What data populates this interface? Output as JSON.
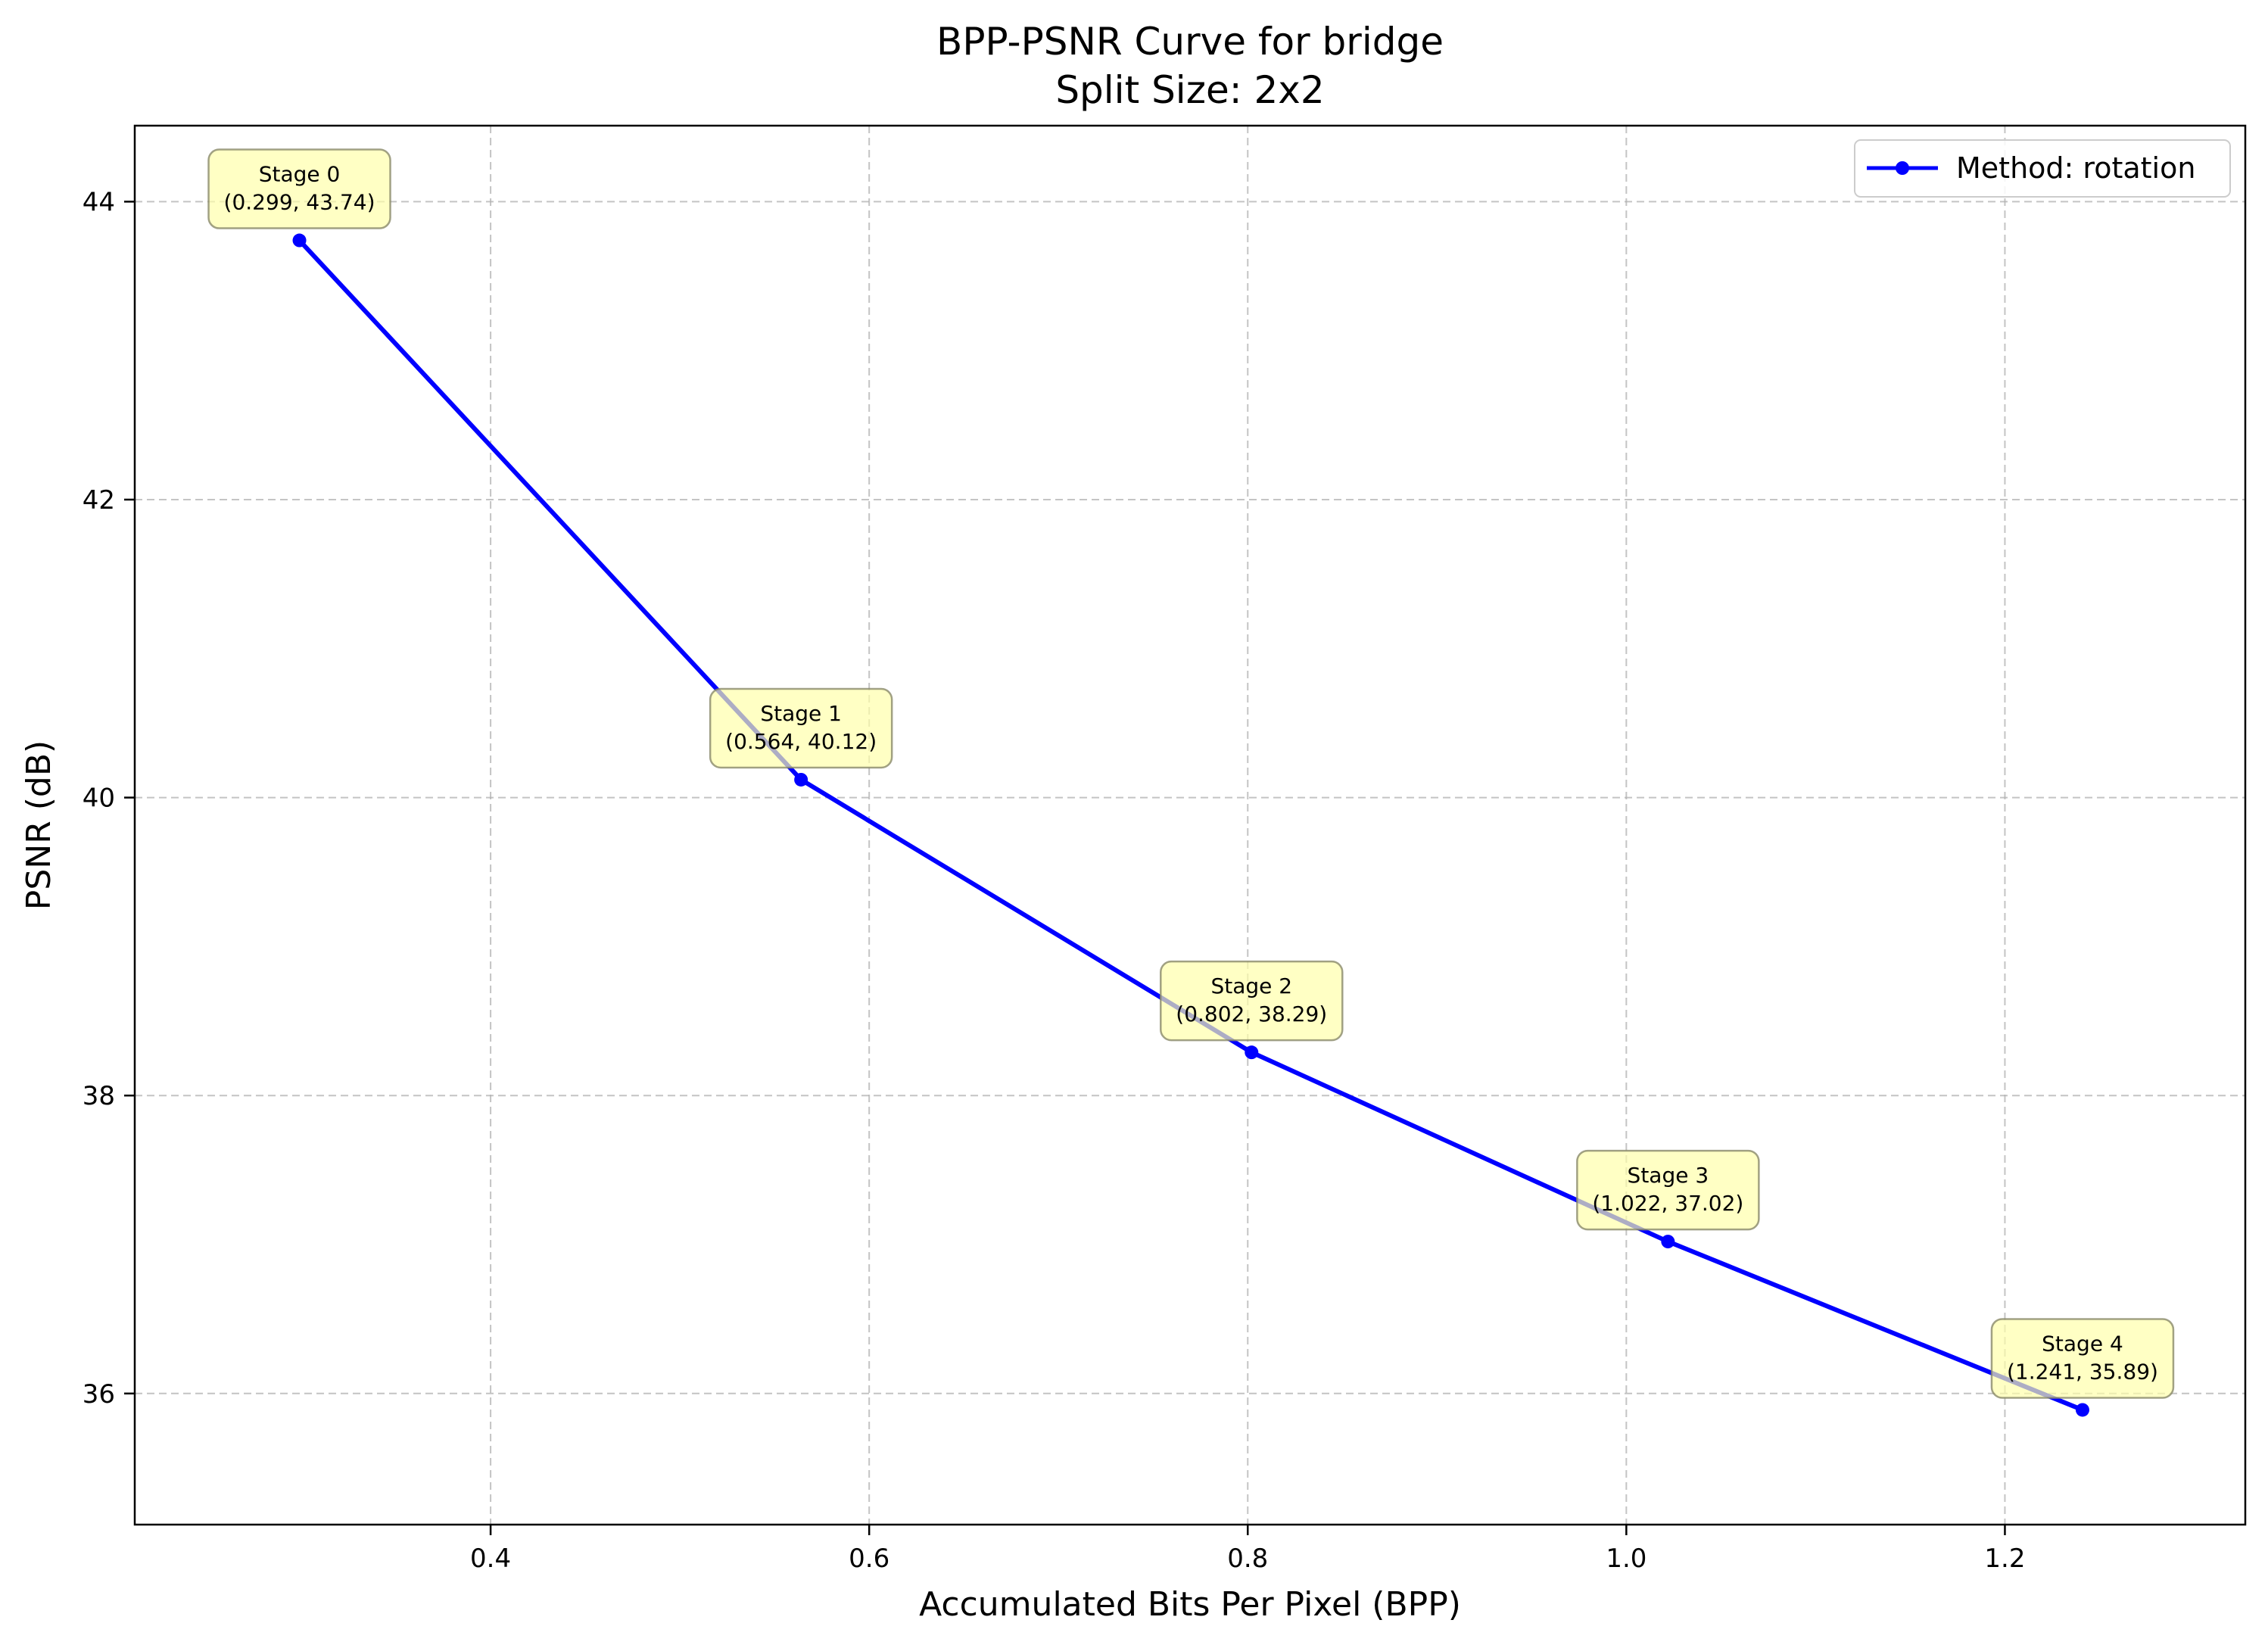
{
  "chart_data": {
    "type": "line",
    "title": "BPP-PSNR Curve for bridge",
    "subtitle": "Split Size: 2x2",
    "xlabel": "Accumulated Bits Per Pixel (BPP)",
    "ylabel": "PSNR (dB)",
    "xlim": [
      0.212,
      1.327
    ],
    "ylim": [
      35.12,
      44.51
    ],
    "xticks": [
      0.4,
      0.6,
      0.8,
      1.0,
      1.2
    ],
    "xtick_labels": [
      "0.4",
      "0.6",
      "0.8",
      "1.0",
      "1.2"
    ],
    "yticks": [
      36,
      38,
      40,
      42,
      44
    ],
    "ytick_labels": [
      "36",
      "38",
      "40",
      "42",
      "44"
    ],
    "grid": true,
    "legend_position": "top-right",
    "series": [
      {
        "name": "Method: rotation",
        "color": "#0000ff",
        "x": [
          0.299,
          0.564,
          0.802,
          1.022,
          1.241
        ],
        "y": [
          43.74,
          40.12,
          38.29,
          37.02,
          35.89
        ]
      }
    ],
    "annotations": [
      {
        "line1": "Stage 0",
        "line2": "(0.299, 43.74)",
        "x": 0.299,
        "y": 43.74
      },
      {
        "line1": "Stage 1",
        "line2": "(0.564, 40.12)",
        "x": 0.564,
        "y": 40.12
      },
      {
        "line1": "Stage 2",
        "line2": "(0.802, 38.29)",
        "x": 0.802,
        "y": 38.29
      },
      {
        "line1": "Stage 3",
        "line2": "(1.022, 37.02)",
        "x": 1.022,
        "y": 37.02
      },
      {
        "line1": "Stage 4",
        "line2": "(1.241, 35.89)",
        "x": 1.241,
        "y": 35.89
      }
    ],
    "annotation_box_color": "#ffffa8"
  }
}
